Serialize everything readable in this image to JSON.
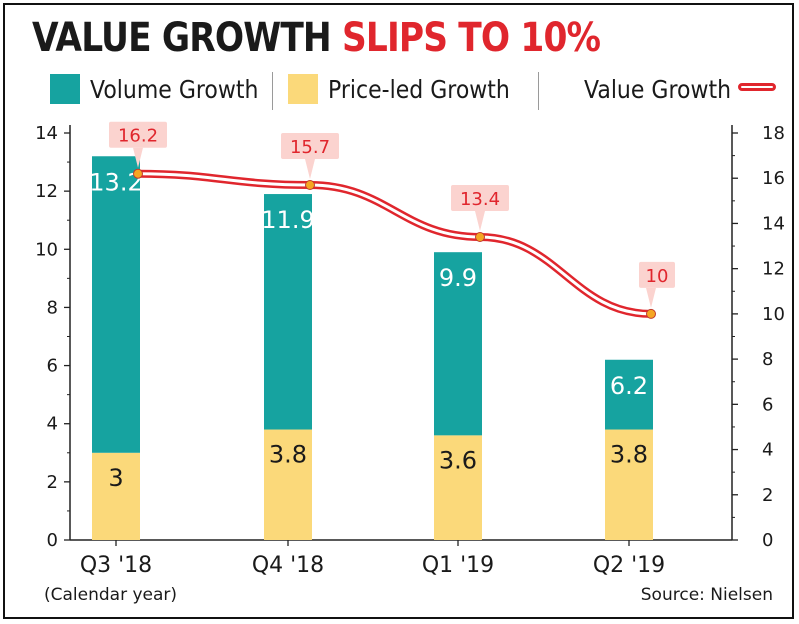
{
  "header": {
    "title_part1": "VALUE GROWTH",
    "title_part2": "SLIPS TO 10%"
  },
  "legend": {
    "volume": "Volume Growth",
    "price": "Price-led Growth",
    "value": "Value Growth"
  },
  "footer": {
    "note": "(Calendar year)",
    "source": "Source: Nielsen"
  },
  "colors": {
    "volume": "#16a3a0",
    "price": "#fbd97a",
    "value_line": "#e0262d",
    "callout_bg": "#fbd3cf",
    "marker": "#f5a623"
  },
  "chart_data": {
    "type": "bar",
    "stacked": true,
    "categories": [
      "Q3 '18",
      "Q4 '18",
      "Q1 '19",
      "Q2 '19"
    ],
    "series": [
      {
        "name": "Price-led Growth",
        "values": [
          3,
          3.8,
          3.6,
          3.8
        ],
        "labels": [
          "3",
          "3.8",
          "3.6",
          "3.8"
        ],
        "axis": "left"
      },
      {
        "name": "Volume Growth",
        "values": [
          10.2,
          8.1,
          6.3,
          2.4
        ],
        "labels": [
          "13.2",
          "11.9",
          "9.9",
          "6.2"
        ],
        "axis": "left"
      },
      {
        "name": "Value Growth",
        "type": "line",
        "values": [
          16.2,
          15.7,
          13.4,
          10
        ],
        "labels": [
          "16.2",
          "15.7",
          "13.4",
          "10"
        ],
        "axis": "right"
      }
    ],
    "left_axis": {
      "ylim": [
        0,
        14
      ],
      "ticks": [
        "0",
        "2",
        "4",
        "6",
        "8",
        "10",
        "12",
        "14"
      ]
    },
    "right_axis": {
      "ylim": [
        0,
        18
      ],
      "ticks": [
        "0",
        "2",
        "4",
        "6",
        "8",
        "10",
        "12",
        "14",
        "16",
        "18"
      ]
    },
    "grid": false,
    "legend_position": "top"
  }
}
